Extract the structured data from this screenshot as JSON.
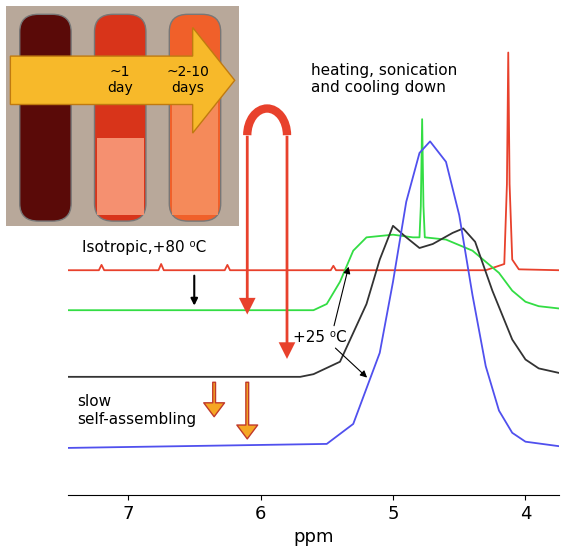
{
  "chart_data": {
    "type": "line",
    "x_label": "ppm",
    "xlim": [
      7.45,
      3.75
    ],
    "xticks": [
      7,
      6,
      5,
      4
    ],
    "ylim": [
      0,
      10.4
    ],
    "tick_labels": "x",
    "grid": false,
    "annotations": [
      "Isotropic,+80 ⁰C",
      "heating, sonication\nand cooling down",
      "+25 ⁰C",
      "slow\nself-assembling",
      "~1\nday",
      "~2-10\ndays"
    ],
    "series": [
      {
        "color": "#e8412c",
        "x": [
          7.45,
          7.22,
          7.2,
          7.18,
          7.0,
          6.77,
          6.75,
          6.73,
          6.5,
          6.27,
          6.25,
          6.23,
          5.8,
          5.47,
          5.45,
          5.43,
          4.3,
          4.16,
          4.14,
          4.13,
          4.12,
          4.1,
          4.05,
          3.75
        ],
        "values": [
          5.06,
          5.06,
          5.18,
          5.06,
          5.06,
          5.06,
          5.2,
          5.06,
          5.06,
          5.06,
          5.18,
          5.06,
          5.06,
          5.06,
          5.16,
          5.06,
          5.06,
          5.2,
          7.0,
          9.96,
          7.0,
          5.3,
          5.08,
          5.06
        ]
      },
      {
        "color": "#33dd44",
        "x": [
          7.45,
          5.6,
          5.5,
          5.4,
          5.3,
          5.2,
          5.0,
          4.85,
          4.8,
          4.79,
          4.78,
          4.77,
          4.76,
          4.6,
          4.4,
          4.2,
          4.1,
          4.0,
          3.9,
          3.75
        ],
        "values": [
          4.16,
          4.16,
          4.3,
          4.8,
          5.5,
          5.8,
          5.86,
          5.8,
          5.8,
          6.5,
          8.46,
          6.5,
          5.8,
          5.75,
          5.5,
          5.0,
          4.6,
          4.35,
          4.25,
          4.2
        ]
      },
      {
        "color": "#333333",
        "x": [
          7.45,
          5.7,
          5.6,
          5.4,
          5.2,
          5.1,
          5.0,
          4.9,
          4.8,
          4.7,
          4.55,
          4.47,
          4.38,
          4.25,
          4.1,
          4.0,
          3.9,
          3.75
        ],
        "values": [
          2.66,
          2.66,
          2.72,
          3.0,
          4.3,
          5.3,
          6.06,
          5.8,
          5.56,
          5.65,
          5.9,
          6.0,
          5.7,
          4.6,
          3.5,
          3.05,
          2.85,
          2.75
        ]
      },
      {
        "color": "#5050ee",
        "x": [
          7.45,
          5.5,
          5.3,
          5.1,
          5.0,
          4.9,
          4.8,
          4.72,
          4.6,
          4.5,
          4.4,
          4.3,
          4.2,
          4.1,
          4.0,
          3.75
        ],
        "values": [
          1.06,
          1.15,
          1.6,
          3.2,
          4.8,
          6.6,
          7.7,
          7.96,
          7.5,
          6.3,
          4.5,
          2.9,
          1.9,
          1.4,
          1.2,
          1.1
        ]
      }
    ]
  }
}
